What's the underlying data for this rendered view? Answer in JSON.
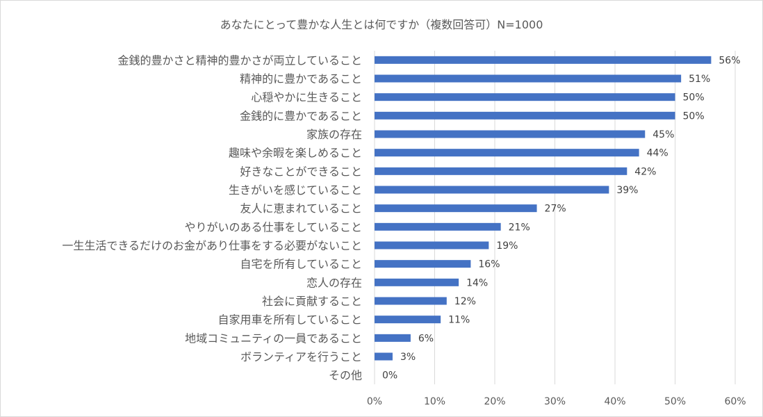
{
  "chart_data": {
    "type": "bar",
    "orientation": "horizontal",
    "title": "あなたにとって豊かな人生とは何ですか（複数回答可）N=1000",
    "categories": [
      "金銭的豊かさと精神的豊かさが両立していること",
      "精神的に豊かであること",
      "心穏やかに生きること",
      "金銭的に豊かであること",
      "家族の存在",
      "趣味や余暇を楽しめること",
      "好きなことができること",
      "生きがいを感じていること",
      "友人に恵まれていること",
      "やりがいのある仕事をしていること",
      "一生生活できるだけのお金があり仕事をする必要がないこと",
      "自宅を所有していること",
      "恋人の存在",
      "社会に貢献すること",
      "自家用車を所有していること",
      "地域コミュニティの一員であること",
      "ボランティアを行うこと",
      "その他"
    ],
    "values": [
      56,
      51,
      50,
      50,
      45,
      44,
      42,
      39,
      27,
      21,
      19,
      16,
      14,
      12,
      11,
      6,
      3,
      0
    ],
    "value_labels": [
      "56%",
      "51%",
      "50%",
      "50%",
      "45%",
      "44%",
      "42%",
      "39%",
      "27%",
      "21%",
      "19%",
      "16%",
      "14%",
      "12%",
      "11%",
      "6%",
      "3%",
      "0%"
    ],
    "xlim": [
      0,
      60
    ],
    "xticks": [
      "0%",
      "10%",
      "20%",
      "30%",
      "40%",
      "50%",
      "60%"
    ],
    "grid": "vertical",
    "legend": "none",
    "colors": {
      "bar": "#4472c4",
      "grid": "#d9d9d9",
      "text": "#595959"
    }
  }
}
